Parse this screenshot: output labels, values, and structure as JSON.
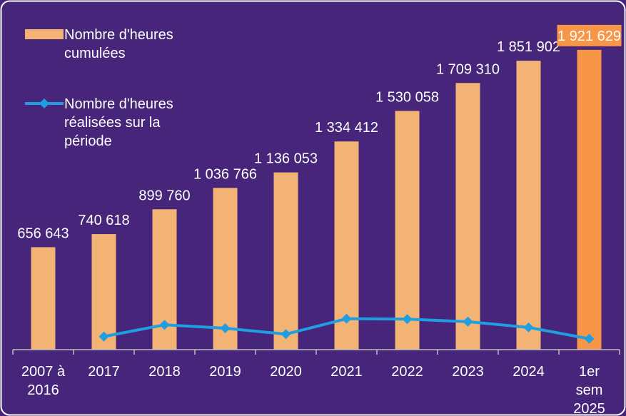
{
  "chart_data": {
    "type": "bar-line",
    "categories": [
      "2007 à\n2016",
      "2017",
      "2018",
      "2019",
      "2020",
      "2021",
      "2022",
      "2023",
      "2024",
      "1er\nsem\n2025"
    ],
    "ylim": [
      0,
      2200000
    ],
    "legend": "top-left",
    "series": [
      {
        "name": "Nombre d'heures\ncumulées",
        "type": "bar",
        "color": "#f2b375",
        "colors": [
          "#f2b375",
          "#f2b375",
          "#f2b375",
          "#f2b375",
          "#f2b375",
          "#f2b375",
          "#f2b375",
          "#f2b375",
          "#f2b375",
          "#f79646"
        ],
        "values": [
          656643,
          740618,
          899760,
          1036766,
          1136053,
          1334412,
          1530058,
          1709310,
          1851902,
          1921629
        ],
        "value_labels": [
          "656 643",
          "740 618",
          "899 760",
          "1 036 766",
          "1 136 053",
          "1 334 412",
          "1 530 058",
          "1 709 310",
          "1 851 902",
          "1 921 629"
        ]
      },
      {
        "name": "Nombre d'heures\nréalisées sur la\npériode",
        "type": "line",
        "color": "#1f9ee0",
        "values": [
          null,
          83975,
          159142,
          137006,
          99287,
          198359,
          195646,
          179252,
          142592,
          69727
        ]
      }
    ]
  }
}
